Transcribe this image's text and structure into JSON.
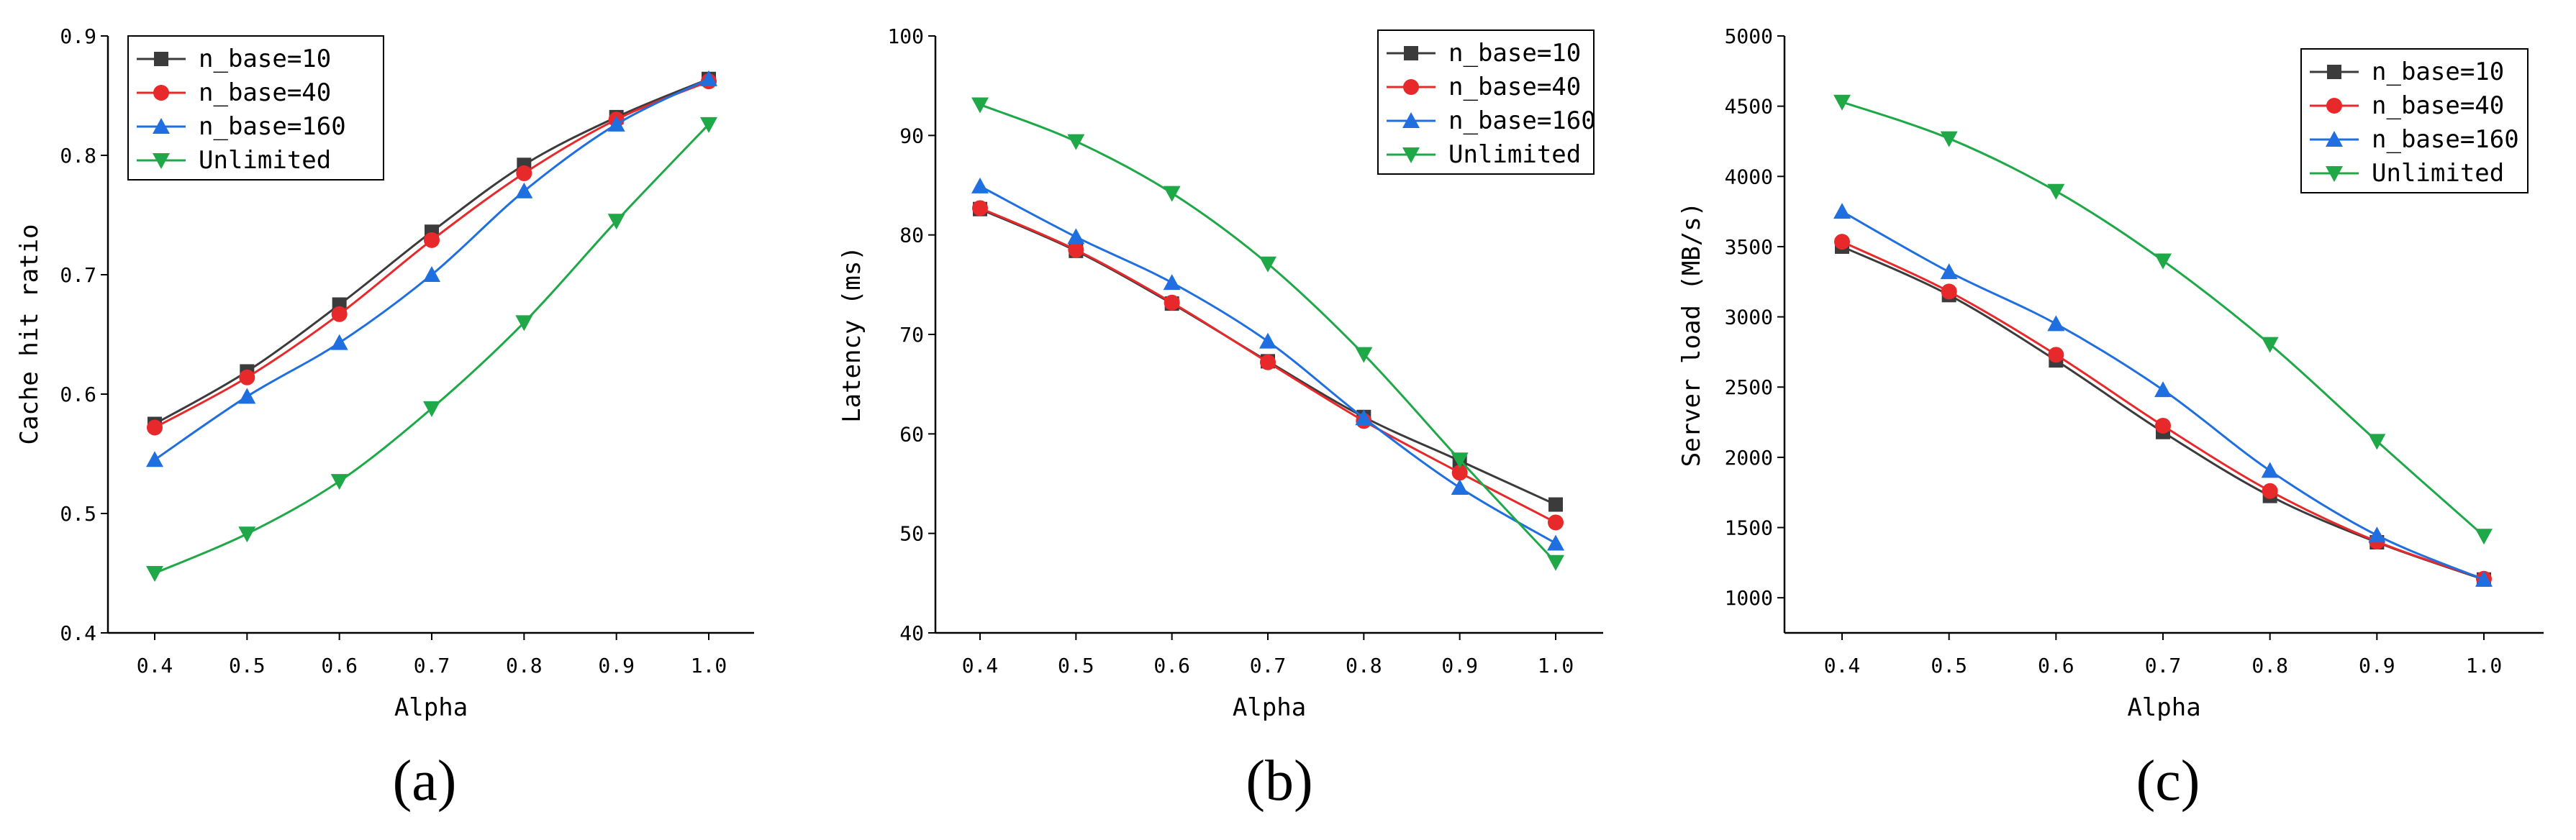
{
  "colors": {
    "n_base=10": "#3b3b3b",
    "n_base=40": "#e8292c",
    "n_base=160": "#1f6fe0",
    "Unlimited": "#1fa847"
  },
  "markers": {
    "n_base=10": "square",
    "n_base=40": "circle",
    "n_base=160": "triangle-up",
    "Unlimited": "triangle-down"
  },
  "chart_data": [
    {
      "panel": "(a)",
      "type": "line",
      "xlabel": "Alpha",
      "ylabel": "Cache hit ratio",
      "x": [
        0.4,
        0.5,
        0.6,
        0.7,
        0.8,
        0.9,
        1.0
      ],
      "x_tick_labels": [
        "0.4",
        "0.5",
        "0.6",
        "0.7",
        "0.8",
        "0.9",
        "1.0"
      ],
      "ylim": [
        0.4,
        0.9
      ],
      "y_ticks": [
        0.4,
        0.5,
        0.6,
        0.7,
        0.8,
        0.9
      ],
      "y_tick_labels": [
        "0.4",
        "0.5",
        "0.6",
        "0.7",
        "0.8",
        "0.9"
      ],
      "legend_position": "top-left",
      "grid": false,
      "series": [
        {
          "name": "n_base=10",
          "values": [
            0.575,
            0.619,
            0.675,
            0.736,
            0.792,
            0.832,
            0.864
          ]
        },
        {
          "name": "n_base=40",
          "values": [
            0.572,
            0.614,
            0.667,
            0.729,
            0.785,
            0.83,
            0.862
          ]
        },
        {
          "name": "n_base=160",
          "values": [
            0.545,
            0.598,
            0.643,
            0.7,
            0.77,
            0.826,
            0.864
          ]
        },
        {
          "name": "Unlimited",
          "values": [
            0.45,
            0.483,
            0.527,
            0.588,
            0.66,
            0.745,
            0.826
          ]
        }
      ]
    },
    {
      "panel": "(b)",
      "type": "line",
      "xlabel": "Alpha",
      "ylabel": "Latency (ms)",
      "x": [
        0.4,
        0.5,
        0.6,
        0.7,
        0.8,
        0.9,
        1.0
      ],
      "x_tick_labels": [
        "0.4",
        "0.5",
        "0.6",
        "0.7",
        "0.8",
        "0.9",
        "1.0"
      ],
      "ylim": [
        40,
        100
      ],
      "y_ticks": [
        40,
        50,
        60,
        70,
        80,
        90,
        100
      ],
      "y_tick_labels": [
        "40",
        "50",
        "60",
        "70",
        "80",
        "90",
        "100"
      ],
      "legend_position": "top-right",
      "grid": false,
      "series": [
        {
          "name": "n_base=10",
          "values": [
            82.6,
            78.4,
            73.1,
            67.3,
            61.7,
            57.3,
            52.9
          ]
        },
        {
          "name": "n_base=40",
          "values": [
            82.7,
            78.5,
            73.2,
            67.2,
            61.3,
            56.1,
            51.1
          ]
        },
        {
          "name": "n_base=160",
          "values": [
            84.9,
            79.8,
            75.2,
            69.3,
            61.6,
            54.6,
            49.0
          ]
        },
        {
          "name": "Unlimited",
          "values": [
            93.1,
            89.4,
            84.2,
            77.1,
            68.0,
            57.4,
            47.1
          ]
        }
      ]
    },
    {
      "panel": "(c)",
      "type": "line",
      "xlabel": "Alpha",
      "ylabel": "Server load (MB/s)",
      "x": [
        0.4,
        0.5,
        0.6,
        0.7,
        0.8,
        0.9,
        1.0
      ],
      "x_tick_labels": [
        "0.4",
        "0.5",
        "0.6",
        "0.7",
        "0.8",
        "0.9",
        "1.0"
      ],
      "ylim": [
        750,
        5000
      ],
      "y_ticks": [
        1000,
        1500,
        2000,
        2500,
        3000,
        3500,
        4000,
        4500,
        5000
      ],
      "y_tick_labels": [
        "1000",
        "1500",
        "2000",
        "2500",
        "3000",
        "3500",
        "4000",
        "4500",
        "5000"
      ],
      "legend_position": "top-right",
      "grid": false,
      "series": [
        {
          "name": "n_base=10",
          "values": [
            3500,
            3155,
            2690,
            2180,
            1725,
            1395,
            1130
          ]
        },
        {
          "name": "n_base=40",
          "values": [
            3535,
            3180,
            2730,
            2225,
            1760,
            1400,
            1135
          ]
        },
        {
          "name": "n_base=160",
          "values": [
            3750,
            3320,
            2950,
            2480,
            1905,
            1445,
            1130
          ]
        },
        {
          "name": "Unlimited",
          "values": [
            4530,
            4270,
            3895,
            3400,
            2805,
            2115,
            1440
          ]
        }
      ]
    }
  ]
}
